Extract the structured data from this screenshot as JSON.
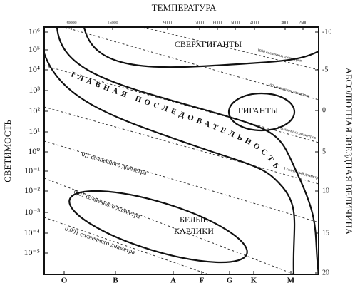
{
  "header": {
    "title": "ТЕМПЕРАТУРА"
  },
  "axes": {
    "left": {
      "label": "СВЕТИМОСТЬ",
      "ticks": [
        "10⁶",
        "10⁵",
        "10⁴",
        "10³",
        "10²",
        "10¹",
        "10⁰",
        "10⁻¹",
        "10⁻²",
        "10⁻³",
        "10⁻⁴",
        "10⁻⁵"
      ]
    },
    "right": {
      "label": "АБСОЛЮТНАЯ ЗВЕЗДНАЯ ВЕЛИЧИНА",
      "ticks": [
        "-10",
        "-5",
        "0",
        "5",
        "10",
        "15",
        "20"
      ]
    },
    "top": {
      "ticks": [
        "30000",
        "15000",
        "9000",
        "7000",
        "6000",
        "5000",
        "4000",
        "3000",
        "2500"
      ]
    },
    "bottom": {
      "ticks": [
        "O",
        "B",
        "A",
        "F",
        "G",
        "K",
        "M"
      ]
    }
  },
  "regions": {
    "supergiants": "СВЕРХГИГАНТЫ",
    "giants": "ГИГАНТЫ",
    "main_sequence": "ГЛАВНАЯ ПОСЛЕДОВАТЕЛЬНОСТЬ",
    "white_dwarfs": [
      "БЕЛЫЕ",
      "КАРЛИКИ"
    ]
  },
  "diameters": [
    "1000 солнечных диаметров",
    "100 солнечных диаметров",
    "10 солнечных диаметров",
    "1 солнечный диаметр",
    "0,1 солнечного диаметра",
    "0,01 солнечного диаметра",
    "0,001 солнечного диаметра"
  ]
}
